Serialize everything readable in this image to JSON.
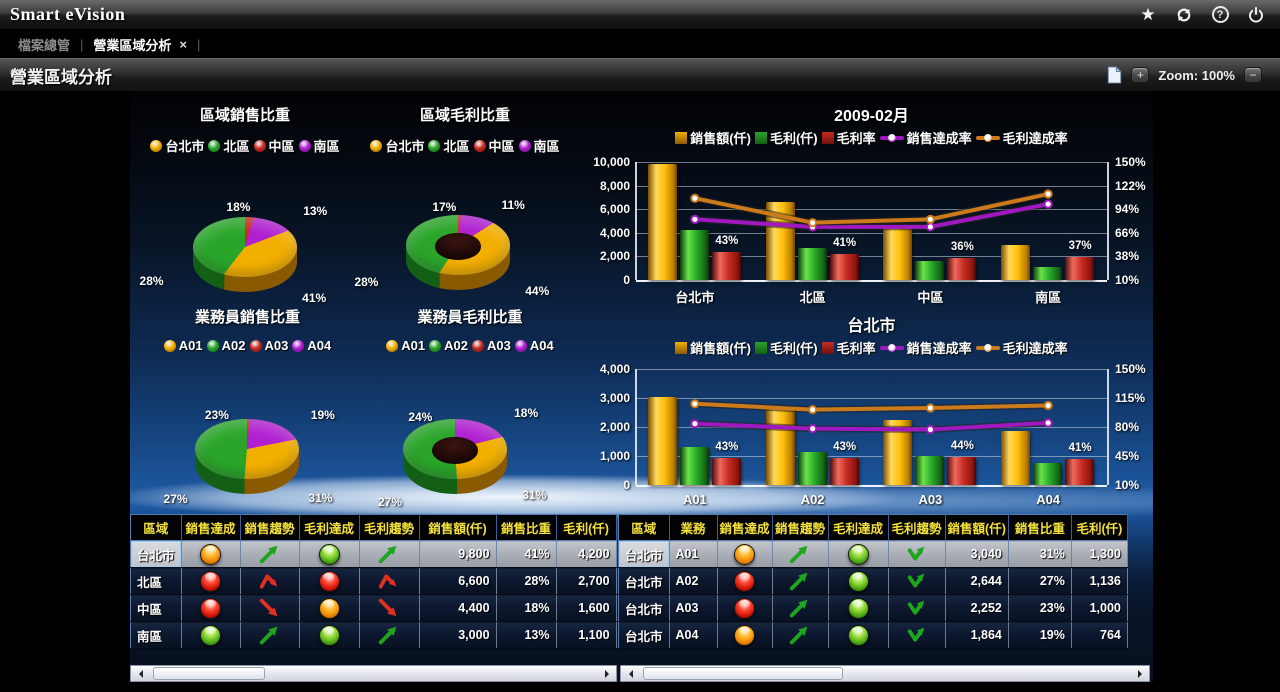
{
  "topbar": {
    "title": "Smart eVision"
  },
  "icons": {
    "favorite": "★",
    "help": "?",
    "close": "×",
    "zoom_in": "+",
    "zoom_out": "−"
  },
  "tabbar": {
    "home_tab": "檔案總管",
    "active_tab": "營業區域分析",
    "separator": "|"
  },
  "toolbar": {
    "page_title": "營業區域分析",
    "zoom_label": "Zoom: 100%"
  },
  "colors": {
    "gold": "#f2af00",
    "green": "#2aa52a",
    "red": "#c62b22",
    "magenta": "#b01fd0",
    "line_purple": "#a018c0",
    "line_orange": "#cc7a1a",
    "header_yellow": "#f3e03b",
    "selected_row": "#a7abb3"
  },
  "chart_data": [
    {
      "id": "pie-region-sales",
      "type": "pie",
      "title": "區域銷售比重",
      "donut": false,
      "start_angle": -55,
      "legend": [
        {
          "label": "台北市",
          "color": "gold"
        },
        {
          "label": "北區",
          "color": "green"
        },
        {
          "label": "中區",
          "color": "red"
        },
        {
          "label": "南區",
          "color": "magenta"
        }
      ],
      "slices": [
        {
          "label": "中區",
          "value": 18,
          "pct_label": "18%",
          "color": "red"
        },
        {
          "label": "南區",
          "value": 13,
          "pct_label": "13%",
          "color": "magenta"
        },
        {
          "label": "台北市",
          "value": 41,
          "pct_label": "41%",
          "color": "gold"
        },
        {
          "label": "北區",
          "value": 28,
          "pct_label": "28%",
          "color": "green"
        }
      ]
    },
    {
      "id": "pie-region-profit",
      "type": "pie",
      "title": "區域毛利比重",
      "donut": true,
      "start_angle": -58,
      "legend": [
        {
          "label": "台北市",
          "color": "gold"
        },
        {
          "label": "北區",
          "color": "green"
        },
        {
          "label": "中區",
          "color": "red"
        },
        {
          "label": "南區",
          "color": "magenta"
        }
      ],
      "slices": [
        {
          "label": "中區",
          "value": 17,
          "pct_label": "17%",
          "color": "red"
        },
        {
          "label": "南區",
          "value": 11,
          "pct_label": "11%",
          "color": "magenta"
        },
        {
          "label": "台北市",
          "value": 44,
          "pct_label": "44%",
          "color": "gold"
        },
        {
          "label": "北區",
          "value": 28,
          "pct_label": "28%",
          "color": "green"
        }
      ]
    },
    {
      "id": "pie-agent-sales",
      "type": "pie",
      "title": "業務員銷售比重",
      "donut": false,
      "start_angle": -80,
      "legend": [
        {
          "label": "A01",
          "color": "gold"
        },
        {
          "label": "A02",
          "color": "green"
        },
        {
          "label": "A03",
          "color": "red"
        },
        {
          "label": "A04",
          "color": "magenta"
        }
      ],
      "slices": [
        {
          "label": "A03",
          "value": 23,
          "pct_label": "23%",
          "color": "red"
        },
        {
          "label": "A04",
          "value": 19,
          "pct_label": "19%",
          "color": "magenta"
        },
        {
          "label": "A01",
          "value": 31,
          "pct_label": "31%",
          "color": "gold"
        },
        {
          "label": "A02",
          "value": 27,
          "pct_label": "27%",
          "color": "green"
        }
      ]
    },
    {
      "id": "pie-agent-profit",
      "type": "pie",
      "title": "業務員毛利比重",
      "donut": true,
      "start_angle": -85,
      "legend": [
        {
          "label": "A01",
          "color": "gold"
        },
        {
          "label": "A02",
          "color": "green"
        },
        {
          "label": "A03",
          "color": "red"
        },
        {
          "label": "A04",
          "color": "magenta"
        }
      ],
      "slices": [
        {
          "label": "A03",
          "value": 24,
          "pct_label": "24%",
          "color": "red"
        },
        {
          "label": "A04",
          "value": 18,
          "pct_label": "18%",
          "color": "magenta"
        },
        {
          "label": "A01",
          "value": 31,
          "pct_label": "31%",
          "color": "gold"
        },
        {
          "label": "A02",
          "value": 27,
          "pct_label": "27%",
          "color": "green"
        }
      ]
    },
    {
      "id": "combo-month",
      "type": "bar-line",
      "title": "2009-02月",
      "categories": [
        "台北市",
        "北區",
        "中區",
        "南區"
      ],
      "left_axis": {
        "max": 10000,
        "ticks": [
          {
            "value": 10000,
            "label": "10,000"
          },
          {
            "value": 8000,
            "label": "8,000"
          },
          {
            "value": 6000,
            "label": "6,000"
          },
          {
            "value": 4000,
            "label": "4,000"
          },
          {
            "value": 2000,
            "label": "2,000"
          },
          {
            "value": 0,
            "label": "0"
          }
        ]
      },
      "right_axis": {
        "min": 10,
        "max": 150,
        "ticks": [
          {
            "value": 150,
            "label": "150%"
          },
          {
            "value": 122,
            "label": "122%"
          },
          {
            "value": 94,
            "label": "94%"
          },
          {
            "value": 66,
            "label": "66%"
          },
          {
            "value": 38,
            "label": "38%"
          },
          {
            "value": 10,
            "label": "10%"
          }
        ]
      },
      "series": [
        {
          "name": "銷售額(仟)",
          "kind": "bar",
          "axis": "left",
          "color": "gold",
          "values": [
            9800,
            6600,
            4400,
            3000
          ]
        },
        {
          "name": "毛利(仟)",
          "kind": "bar",
          "axis": "left",
          "color": "green",
          "values": [
            4200,
            2700,
            1600,
            1100
          ]
        },
        {
          "name": "毛利率",
          "kind": "bar",
          "axis": "right",
          "color": "red",
          "values": [
            43,
            41,
            36,
            37
          ],
          "labels": [
            "43%",
            "41%",
            "36%",
            "37%"
          ]
        },
        {
          "name": "銷售達成率",
          "kind": "line",
          "axis": "right",
          "color": "line_purple",
          "values": [
            82,
            73,
            73,
            100
          ]
        },
        {
          "name": "毛利達成率",
          "kind": "line",
          "axis": "right",
          "color": "line_orange",
          "values": [
            107,
            78,
            82,
            112
          ]
        }
      ]
    },
    {
      "id": "combo-taipei",
      "type": "bar-line",
      "title": "台北市",
      "categories": [
        "A01",
        "A02",
        "A03",
        "A04"
      ],
      "left_axis": {
        "max": 4000,
        "ticks": [
          {
            "value": 4000,
            "label": "4,000"
          },
          {
            "value": 3000,
            "label": "3,000"
          },
          {
            "value": 2000,
            "label": "2,000"
          },
          {
            "value": 1000,
            "label": "1,000"
          },
          {
            "value": 0,
            "label": "0"
          }
        ]
      },
      "right_axis": {
        "min": 10,
        "max": 150,
        "ticks": [
          {
            "value": 150,
            "label": "150%"
          },
          {
            "value": 115,
            "label": "115%"
          },
          {
            "value": 80,
            "label": "80%"
          },
          {
            "value": 45,
            "label": "45%"
          },
          {
            "value": 10,
            "label": "10%"
          }
        ]
      },
      "series": [
        {
          "name": "銷售額(仟)",
          "kind": "bar",
          "axis": "left",
          "color": "gold",
          "values": [
            3040,
            2644,
            2252,
            1864
          ]
        },
        {
          "name": "毛利(仟)",
          "kind": "bar",
          "axis": "left",
          "color": "green",
          "values": [
            1300,
            1136,
            1000,
            764
          ]
        },
        {
          "name": "毛利率",
          "kind": "bar",
          "axis": "right",
          "color": "red",
          "values": [
            43,
            43,
            44,
            41
          ],
          "labels": [
            "43%",
            "43%",
            "44%",
            "41%"
          ]
        },
        {
          "name": "銷售達成率",
          "kind": "line",
          "axis": "right",
          "color": "line_purple",
          "values": [
            84,
            78,
            77,
            85
          ]
        },
        {
          "name": "毛利達成率",
          "kind": "line",
          "axis": "right",
          "color": "line_orange",
          "values": [
            108,
            101,
            103,
            106
          ]
        }
      ]
    }
  ],
  "tables": {
    "region": {
      "headers": [
        "區域",
        "銷售達成",
        "銷售趨勢",
        "毛利達成",
        "毛利趨勢",
        "銷售額(仟)",
        "銷售比重",
        "毛利(仟)"
      ],
      "rows": [
        {
          "region": "台北市",
          "sales_light": "orange",
          "sales_trend": "up-green",
          "profit_light": "green",
          "profit_trend": "up-green",
          "sales": "9,800",
          "share": "41%",
          "profit": "4,200",
          "selected": true
        },
        {
          "region": "北區",
          "sales_light": "red",
          "sales_trend": "bend-red",
          "profit_light": "red",
          "profit_trend": "bend-red",
          "sales": "6,600",
          "share": "28%",
          "profit": "2,700",
          "selected": false
        },
        {
          "region": "中區",
          "sales_light": "red",
          "sales_trend": "down-red",
          "profit_light": "orange",
          "profit_trend": "down-red",
          "sales": "4,400",
          "share": "18%",
          "profit": "1,600",
          "selected": false
        },
        {
          "region": "南區",
          "sales_light": "green",
          "sales_trend": "up-green",
          "profit_light": "green",
          "profit_trend": "up-green",
          "sales": "3,000",
          "share": "13%",
          "profit": "1,100",
          "selected": false
        }
      ]
    },
    "agent": {
      "headers": [
        "區域",
        "業務",
        "銷售達成",
        "銷售趨勢",
        "毛利達成",
        "毛利趨勢",
        "銷售額(仟)",
        "銷售比重",
        "毛利(仟)"
      ],
      "rows": [
        {
          "region": "台北市",
          "agent": "A01",
          "sales_light": "orange",
          "sales_trend": "up-green",
          "profit_light": "green",
          "profit_trend": "check-green",
          "sales": "3,040",
          "share": "31%",
          "profit": "1,300",
          "selected": true
        },
        {
          "region": "台北市",
          "agent": "A02",
          "sales_light": "red",
          "sales_trend": "up-green",
          "profit_light": "green",
          "profit_trend": "check-green",
          "sales": "2,644",
          "share": "27%",
          "profit": "1,136",
          "selected": false
        },
        {
          "region": "台北市",
          "agent": "A03",
          "sales_light": "red",
          "sales_trend": "up-green",
          "profit_light": "green",
          "profit_trend": "check-green",
          "sales": "2,252",
          "share": "23%",
          "profit": "1,000",
          "selected": false
        },
        {
          "region": "台北市",
          "agent": "A04",
          "sales_light": "orange",
          "sales_trend": "up-green",
          "profit_light": "green",
          "profit_trend": "check-green",
          "sales": "1,864",
          "share": "19%",
          "profit": "764",
          "selected": false
        }
      ]
    }
  }
}
